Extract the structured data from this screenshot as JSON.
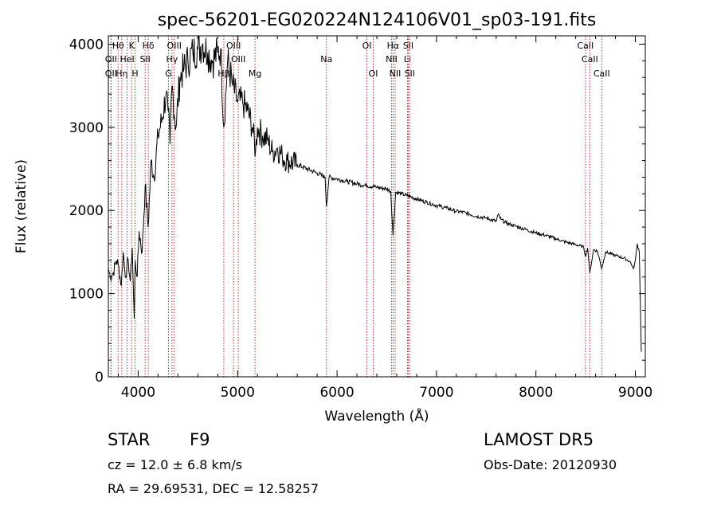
{
  "chart_data": {
    "type": "line",
    "title": "spec-56201-EG020224N124106V01_sp03-191.fits",
    "xlabel": "Wavelength (Å)",
    "ylabel": "Flux (relative)",
    "xlim": [
      3700,
      9100
    ],
    "ylim": [
      0,
      4100
    ],
    "xticks": [
      4000,
      5000,
      6000,
      7000,
      8000,
      9000
    ],
    "yticks": [
      0,
      1000,
      2000,
      3000,
      4000
    ],
    "grid": false,
    "series": [
      {
        "x": [
          3700,
          3720,
          3750,
          3780,
          3800,
          3830,
          3850,
          3870,
          3900,
          3920,
          3940,
          3960,
          3970,
          3990,
          4010,
          4040,
          4070,
          4100,
          4130,
          4160,
          4200,
          4240,
          4280,
          4300,
          4320,
          4340,
          4380,
          4420,
          4460,
          4500,
          4550,
          4600,
          4650,
          4700,
          4750,
          4800,
          4830,
          4861,
          4900,
          4950,
          5000,
          5050,
          5100,
          5150,
          5180,
          5200,
          5250,
          5300,
          5350,
          5400,
          5450,
          5500,
          5600,
          5700,
          5800,
          5880,
          5893,
          5920,
          6000,
          6100,
          6200,
          6300,
          6400,
          6500,
          6540,
          6563,
          6590,
          6650,
          6700,
          6800,
          6900,
          7000,
          7100,
          7200,
          7300,
          7400,
          7500,
          7600,
          7620,
          7650,
          7700,
          7800,
          7900,
          8000,
          8100,
          8200,
          8300,
          8400,
          8480,
          8498,
          8520,
          8542,
          8580,
          8620,
          8662,
          8700,
          8800,
          8900,
          8950,
          8980,
          9000,
          9020,
          9040,
          9060
        ],
        "y": [
          1300,
          1200,
          1250,
          1400,
          1350,
          1100,
          1500,
          1200,
          1400,
          1150,
          1550,
          700,
          1400,
          1200,
          1750,
          1500,
          2300,
          1800,
          2600,
          2400,
          2900,
          3100,
          3400,
          3200,
          2800,
          3500,
          3000,
          3600,
          3700,
          3800,
          3900,
          3950,
          4000,
          3900,
          3800,
          3900,
          3950,
          3000,
          3800,
          3500,
          3300,
          3300,
          3200,
          3000,
          2700,
          3000,
          2900,
          2850,
          2700,
          2750,
          2650,
          2600,
          2550,
          2500,
          2450,
          2400,
          2050,
          2400,
          2380,
          2350,
          2320,
          2300,
          2280,
          2260,
          2230,
          1700,
          2220,
          2200,
          2180,
          2140,
          2100,
          2060,
          2030,
          1990,
          1970,
          1930,
          1910,
          1870,
          1950,
          1890,
          1850,
          1810,
          1770,
          1730,
          1700,
          1660,
          1620,
          1590,
          1560,
          1450,
          1550,
          1250,
          1530,
          1510,
          1300,
          1500,
          1460,
          1420,
          1380,
          1300,
          1400,
          1600,
          1500,
          300
        ]
      }
    ],
    "lines": [
      {
        "name": "Hθ",
        "x": 3798,
        "row": 0
      },
      {
        "name": "OII",
        "x": 3727,
        "row": 1
      },
      {
        "name": "OII",
        "x": 3727,
        "row": 2
      },
      {
        "name": "Hη",
        "x": 3835,
        "row": 2
      },
      {
        "name": "HeI",
        "x": 3889,
        "row": 1
      },
      {
        "name": "K",
        "x": 3934,
        "row": 0
      },
      {
        "name": "H",
        "x": 3969,
        "row": 2
      },
      {
        "name": "SII",
        "x": 4070,
        "row": 1
      },
      {
        "name": "Hδ",
        "x": 4102,
        "row": 0
      },
      {
        "name": "Hγ",
        "x": 4340,
        "row": 1
      },
      {
        "name": "G",
        "x": 4305,
        "row": 2
      },
      {
        "name": "OIII",
        "x": 4363,
        "row": 0
      },
      {
        "name": "Hβ",
        "x": 4861,
        "row": 2
      },
      {
        "name": "OIII",
        "x": 4959,
        "row": 0
      },
      {
        "name": "OIII",
        "x": 5007,
        "row": 1
      },
      {
        "name": "Mg",
        "x": 5175,
        "row": 2
      },
      {
        "name": "Na",
        "x": 5893,
        "row": 1
      },
      {
        "name": "OI",
        "x": 6300,
        "row": 0
      },
      {
        "name": "OI",
        "x": 6364,
        "row": 2
      },
      {
        "name": "Hα",
        "x": 6563,
        "row": 0
      },
      {
        "name": "NII",
        "x": 6548,
        "row": 1
      },
      {
        "name": "NII",
        "x": 6584,
        "row": 2
      },
      {
        "name": "SII",
        "x": 6716,
        "row": 0
      },
      {
        "name": "Li",
        "x": 6708,
        "row": 1
      },
      {
        "name": "SII",
        "x": 6731,
        "row": 2
      },
      {
        "name": "CaII",
        "x": 8498,
        "row": 0
      },
      {
        "name": "CaII",
        "x": 8542,
        "row": 1
      },
      {
        "name": "CaII",
        "x": 8662,
        "row": 2
      }
    ]
  },
  "info": {
    "class": "STAR",
    "subclass": "F9",
    "survey": "LAMOST DR5",
    "cz": "cz = 12.0 ± 6.8 km/s",
    "obsdate": "Obs-Date: 20120930",
    "radec": "RA =  29.69531, DEC =  12.58257"
  },
  "colors": {
    "spectrum": "#000000",
    "lines": "#b03030"
  }
}
